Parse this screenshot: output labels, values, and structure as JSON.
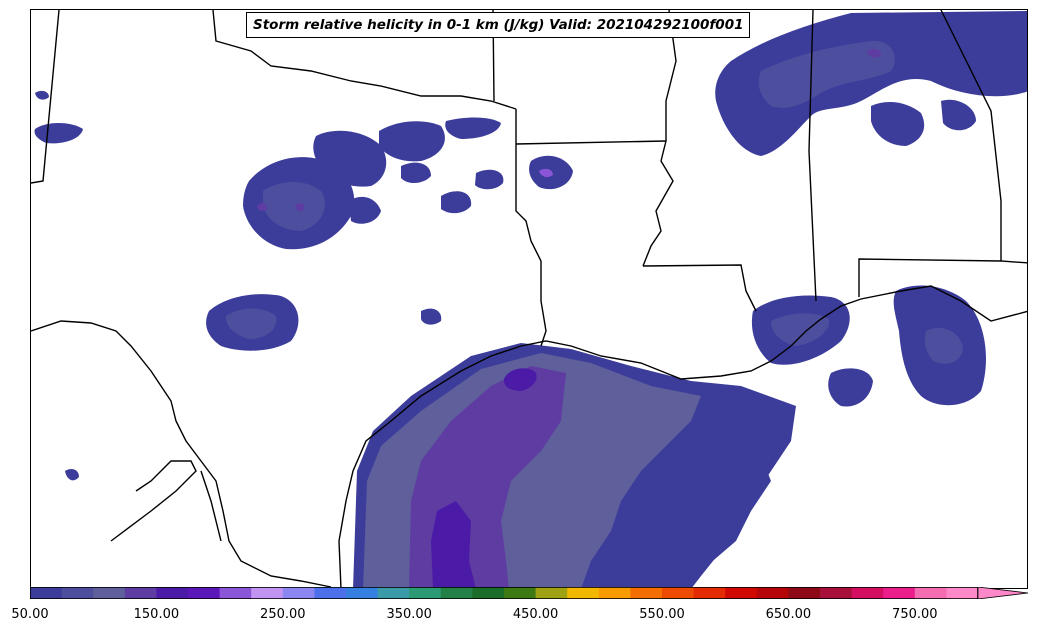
{
  "title": "Storm relative helicity in 0-1 km (J/kg) Valid: 202104292100f001",
  "colorbar": {
    "min": 50,
    "max": 800,
    "step": 25,
    "extend": "max",
    "tick_labels": [
      "50.00",
      "150.00",
      "250.00",
      "350.00",
      "450.00",
      "550.00",
      "650.00",
      "750.00"
    ],
    "colors": [
      "#3c3c9b",
      "#4e4e9e",
      "#5f5f9c",
      "#5e3ca2",
      "#4b1aa6",
      "#5b17b7",
      "#8a55d6",
      "#c294f2",
      "#8c87f0",
      "#4d6fea",
      "#347fe0",
      "#3a9aa8",
      "#2b9a74",
      "#238046",
      "#1a6e2a",
      "#3d7a14",
      "#9ea213",
      "#f2b800",
      "#f79b00",
      "#f56f00",
      "#ec4b00",
      "#e42a00",
      "#cf0800",
      "#b50508",
      "#8f0a17",
      "#a8103c",
      "#d40f62",
      "#ec1e8c",
      "#f36db0",
      "#ff88c8"
    ],
    "extend_color": "#ff88c8"
  },
  "map": {
    "fill_colors": {
      "level1": "#3c3c9b",
      "level2": "#4e4e9e",
      "level3": "#5f5f9c",
      "level4": "#5e3ca2",
      "level5": "#4b1aa6",
      "level6": "#8a55d6"
    },
    "boundary_color": "#000000"
  }
}
